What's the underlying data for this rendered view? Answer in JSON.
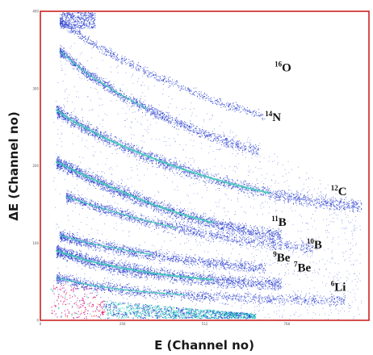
{
  "chart_data": {
    "type": "scatter",
    "title": "",
    "xlabel": "E (Channel no)",
    "ylabel": "ΔE (Channel no)",
    "xlim": [
      0,
      1024
    ],
    "ylim": [
      0,
      400
    ],
    "x_ticks": [
      "0",
      "256",
      "512",
      "768"
    ],
    "y_ticks": [
      "0",
      "100",
      "200",
      "300",
      "400"
    ],
    "grid": false,
    "legend": "none",
    "colors": {
      "frame": "#cc2222",
      "scatter_primary": "#2a3fd0",
      "band_core": "#3fc9b8",
      "low_energy_cluster": [
        "#e0187a",
        "#f0c020",
        "#36d0c0",
        "#9a2ad0"
      ]
    },
    "bands": [
      {
        "label_mass": "16",
        "label_element": "O",
        "label_at": {
          "x": 730,
          "y": 322
        },
        "density": "low",
        "points": [
          [
            60,
            388
          ],
          [
            150,
            362
          ],
          [
            250,
            338
          ],
          [
            350,
            318
          ],
          [
            450,
            300
          ],
          [
            550,
            284
          ],
          [
            640,
            272
          ],
          [
            700,
            264
          ]
        ]
      },
      {
        "label_mass": "14",
        "label_element": "N",
        "label_at": {
          "x": 700,
          "y": 258
        },
        "density": "medium",
        "points": [
          [
            60,
            348
          ],
          [
            150,
            318
          ],
          [
            250,
            292
          ],
          [
            350,
            270
          ],
          [
            450,
            252
          ],
          [
            550,
            236
          ],
          [
            640,
            224
          ],
          [
            680,
            220
          ]
        ]
      },
      {
        "label_mass": "12",
        "label_element": "C",
        "label_at": {
          "x": 905,
          "y": 162
        },
        "density": "high",
        "points": [
          [
            50,
            272
          ],
          [
            100,
            258
          ],
          [
            200,
            236
          ],
          [
            300,
            218
          ],
          [
            400,
            202
          ],
          [
            500,
            188
          ],
          [
            600,
            176
          ],
          [
            700,
            166
          ],
          [
            800,
            158
          ],
          [
            900,
            152
          ],
          [
            1000,
            148
          ]
        ]
      },
      {
        "label_mass": "11",
        "label_element": "B",
        "label_at": {
          "x": 720,
          "y": 122
        },
        "density": "high",
        "points": [
          [
            50,
            205
          ],
          [
            150,
            185
          ],
          [
            250,
            167
          ],
          [
            350,
            150
          ],
          [
            450,
            136
          ],
          [
            550,
            125
          ],
          [
            650,
            116
          ],
          [
            750,
            110
          ]
        ]
      },
      {
        "label_mass": "10",
        "label_element": "B",
        "label_at": {
          "x": 830,
          "y": 93
        },
        "density": "medium",
        "points": [
          [
            80,
            160
          ],
          [
            200,
            144
          ],
          [
            300,
            132
          ],
          [
            400,
            122
          ],
          [
            500,
            113
          ],
          [
            600,
            106
          ],
          [
            700,
            100
          ],
          [
            800,
            96
          ],
          [
            850,
            94
          ]
        ]
      },
      {
        "label_mass": "9",
        "label_element": "Be",
        "label_at": {
          "x": 725,
          "y": 76
        },
        "density": "medium",
        "points": [
          [
            60,
            110
          ],
          [
            150,
            100
          ],
          [
            250,
            92
          ],
          [
            350,
            85
          ],
          [
            450,
            79
          ],
          [
            550,
            74
          ],
          [
            650,
            70
          ],
          [
            700,
            68
          ]
        ]
      },
      {
        "label_mass": "7",
        "label_element": "Be",
        "label_at": {
          "x": 790,
          "y": 63
        },
        "density": "high",
        "points": [
          [
            50,
            90
          ],
          [
            150,
            77
          ],
          [
            250,
            68
          ],
          [
            350,
            61
          ],
          [
            450,
            56
          ],
          [
            550,
            52
          ],
          [
            650,
            49
          ],
          [
            750,
            47
          ]
        ]
      },
      {
        "label_mass": "6",
        "label_element": "Li",
        "label_at": {
          "x": 905,
          "y": 38
        },
        "density": "medium",
        "points": [
          [
            50,
            55
          ],
          [
            150,
            46
          ],
          [
            250,
            40
          ],
          [
            350,
            36
          ],
          [
            450,
            33
          ],
          [
            550,
            31
          ],
          [
            650,
            29
          ],
          [
            750,
            28
          ],
          [
            850,
            27
          ],
          [
            950,
            26
          ]
        ]
      }
    ]
  }
}
